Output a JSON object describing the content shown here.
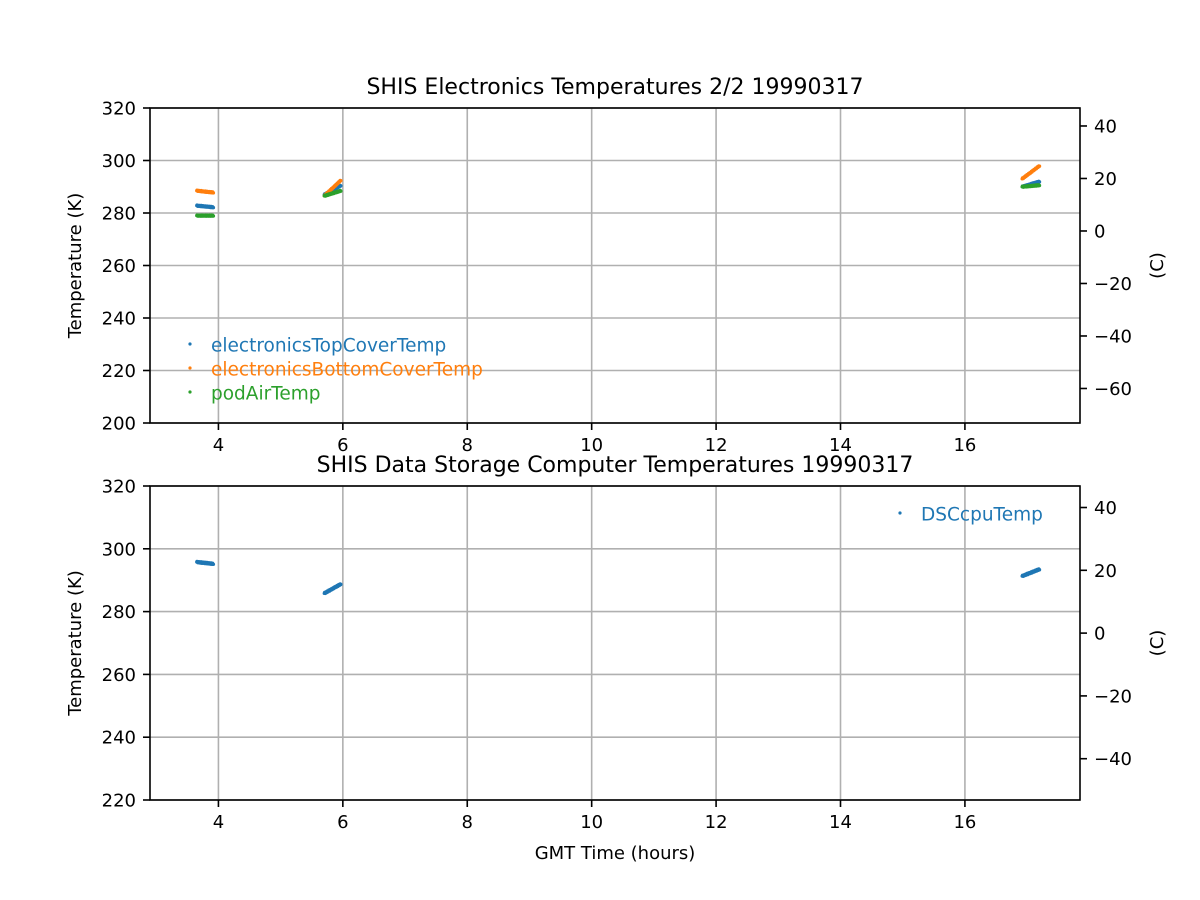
{
  "chart_data": [
    {
      "type": "scatter",
      "title": "SHIS Electronics Temperatures 2/2 19990317",
      "xlabel": "",
      "ylabel": "Temperature (K)",
      "y2label": "(C)",
      "xlim": [
        2.9,
        17.85
      ],
      "ylim": [
        200,
        320
      ],
      "xticks": [
        4,
        6,
        8,
        10,
        12,
        14,
        16
      ],
      "yticks": [
        200,
        220,
        240,
        260,
        280,
        300,
        320
      ],
      "y2ticks": [
        40,
        20,
        0,
        -20,
        -40,
        -60
      ],
      "y2tick_labels": [
        "40",
        "20",
        "0",
        "−20",
        "−40",
        "−60"
      ],
      "grid": true,
      "legend": "lower-left",
      "series": [
        {
          "name": "electronicsTopCoverTemp",
          "color": "#1f77b4",
          "segments": [
            {
              "x": [
                3.65,
                3.92
              ],
              "y": [
                282.8,
                282.2
              ]
            },
            {
              "x": [
                5.7,
                5.97
              ],
              "y": [
                287.0,
                290.5
              ]
            },
            {
              "x": [
                16.92,
                17.2
              ],
              "y": [
                290.0,
                292.0
              ]
            }
          ]
        },
        {
          "name": "electronicsBottomCoverTemp",
          "color": "#ff7f0e",
          "segments": [
            {
              "x": [
                3.65,
                3.92
              ],
              "y": [
                288.5,
                287.8
              ]
            },
            {
              "x": [
                5.7,
                5.97
              ],
              "y": [
                286.5,
                292.5
              ]
            },
            {
              "x": [
                16.92,
                17.2
              ],
              "y": [
                293.0,
                298.0
              ]
            }
          ]
        },
        {
          "name": "podAirTemp",
          "color": "#2ca02c",
          "segments": [
            {
              "x": [
                3.65,
                3.92
              ],
              "y": [
                279.0,
                279.0
              ]
            },
            {
              "x": [
                5.7,
                5.97
              ],
              "y": [
                286.5,
                288.5
              ]
            },
            {
              "x": [
                16.92,
                17.2
              ],
              "y": [
                290.0,
                290.6
              ]
            }
          ]
        }
      ]
    },
    {
      "type": "scatter",
      "title": "SHIS Data Storage Computer Temperatures 19990317",
      "xlabel": "GMT Time (hours)",
      "ylabel": "Temperature (K)",
      "y2label": "(C)",
      "xlim": [
        2.9,
        17.85
      ],
      "ylim": [
        220,
        320
      ],
      "xticks": [
        4,
        6,
        8,
        10,
        12,
        14,
        16
      ],
      "yticks": [
        220,
        240,
        260,
        280,
        300,
        320
      ],
      "y2ticks": [
        40,
        20,
        0,
        -20,
        -40
      ],
      "y2tick_labels": [
        "40",
        "20",
        "0",
        "−20",
        "−40"
      ],
      "grid": true,
      "legend": "upper-right",
      "series": [
        {
          "name": "DSCcpuTemp",
          "color": "#1f77b4",
          "segments": [
            {
              "x": [
                3.65,
                3.92
              ],
              "y": [
                295.8,
                295.2
              ]
            },
            {
              "x": [
                5.7,
                5.97
              ],
              "y": [
                285.8,
                288.8
              ]
            },
            {
              "x": [
                16.92,
                17.2
              ],
              "y": [
                291.3,
                293.5
              ]
            }
          ]
        }
      ]
    }
  ]
}
